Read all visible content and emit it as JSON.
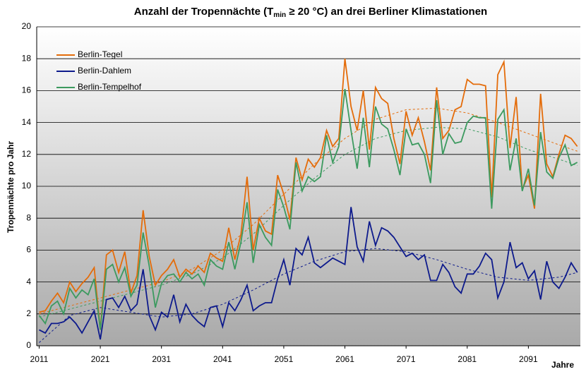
{
  "chart_data": {
    "type": "line",
    "title": [
      "Anzahl der Tropennächte (T",
      "min",
      " ≥ 20 °C) an drei Berliner Klimastationen"
    ],
    "y_label": "Tropennächte pro Jahr",
    "x_label": "Jahre",
    "x": [
      2011,
      2012,
      2013,
      2014,
      2015,
      2016,
      2017,
      2018,
      2019,
      2020,
      2021,
      2022,
      2023,
      2024,
      2025,
      2026,
      2027,
      2028,
      2029,
      2030,
      2031,
      2032,
      2033,
      2034,
      2035,
      2036,
      2037,
      2038,
      2039,
      2040,
      2041,
      2042,
      2043,
      2044,
      2045,
      2046,
      2047,
      2048,
      2049,
      2050,
      2051,
      2052,
      2053,
      2054,
      2055,
      2056,
      2057,
      2058,
      2059,
      2060,
      2061,
      2062,
      2063,
      2064,
      2065,
      2066,
      2067,
      2068,
      2069,
      2070,
      2071,
      2072,
      2073,
      2074,
      2075,
      2076,
      2077,
      2078,
      2079,
      2080,
      2081,
      2082,
      2083,
      2084,
      2085,
      2086,
      2087,
      2088,
      2089,
      2090,
      2091,
      2092,
      2093,
      2094,
      2095,
      2096,
      2097,
      2098,
      2099
    ],
    "xlim": [
      2010.6,
      2099.5
    ],
    "xticks": [
      2011,
      2021,
      2031,
      2041,
      2051,
      2061,
      2071,
      2081,
      2091
    ],
    "ylim": [
      0,
      20
    ],
    "yticks": [
      0,
      2,
      4,
      6,
      8,
      10,
      12,
      14,
      16,
      18,
      20
    ],
    "grid": true,
    "legend": "upper-left",
    "series": [
      {
        "name": "Berlin-Tegel",
        "color": "#e46c0a",
        "values": [
          2.1,
          2.2,
          2.8,
          3.3,
          2.7,
          4.0,
          3.4,
          3.9,
          4.3,
          4.9,
          1.0,
          5.7,
          6.0,
          4.6,
          5.9,
          3.3,
          4.4,
          8.5,
          5.6,
          3.8,
          4.4,
          4.8,
          5.4,
          4.3,
          4.8,
          4.5,
          5.0,
          4.6,
          5.8,
          5.5,
          5.3,
          7.4,
          5.4,
          7.0,
          10.6,
          6.0,
          8.0,
          7.2,
          7.0,
          10.7,
          9.5,
          7.9,
          11.8,
          10.4,
          11.7,
          11.2,
          11.8,
          13.5,
          12.5,
          13.0,
          18.0,
          15.0,
          13.5,
          16.0,
          12.3,
          16.2,
          15.5,
          15.2,
          13.0,
          11.4,
          14.7,
          13.2,
          14.3,
          12.8,
          11.0,
          16.2,
          13.0,
          13.5,
          14.8,
          15.0,
          16.7,
          16.4,
          16.4,
          16.3,
          9.3,
          17.0,
          17.8,
          12.4,
          15.6,
          9.8,
          10.7,
          8.6,
          15.8,
          11.4,
          10.6,
          12.0,
          13.2,
          13.0,
          12.5
        ]
      },
      {
        "name": "Berlin-Dahlem",
        "color": "#0d1a8c",
        "values": [
          1.0,
          0.8,
          1.4,
          1.4,
          1.5,
          1.8,
          1.4,
          0.8,
          1.5,
          2.2,
          0.4,
          2.9,
          3.0,
          2.4,
          3.1,
          2.2,
          2.6,
          4.8,
          1.9,
          1.0,
          2.1,
          1.8,
          3.2,
          1.5,
          2.6,
          1.9,
          1.5,
          1.2,
          2.4,
          2.5,
          1.2,
          2.7,
          2.2,
          2.9,
          3.8,
          2.2,
          2.5,
          2.7,
          2.7,
          4.2,
          5.4,
          3.8,
          6.1,
          5.7,
          6.8,
          5.2,
          4.9,
          5.2,
          5.5,
          5.3,
          5.1,
          8.7,
          6.2,
          5.3,
          7.8,
          6.3,
          7.4,
          7.2,
          6.8,
          6.2,
          5.6,
          5.8,
          5.4,
          5.7,
          4.1,
          4.1,
          5.1,
          4.6,
          3.7,
          3.3,
          4.5,
          4.5,
          5.0,
          5.8,
          5.4,
          3.0,
          4.0,
          6.5,
          4.9,
          5.2,
          4.2,
          4.7,
          2.9,
          5.3,
          4.0,
          3.6,
          4.3,
          5.2,
          4.6
        ]
      },
      {
        "name": "Berlin-Tempelhof",
        "color": "#3c9a5f",
        "values": [
          1.9,
          1.4,
          2.5,
          2.8,
          2.0,
          3.6,
          3.0,
          3.5,
          3.2,
          4.2,
          1.0,
          4.8,
          5.1,
          4.0,
          4.9,
          3.1,
          3.8,
          7.1,
          5.0,
          2.4,
          3.9,
          4.4,
          4.5,
          4.0,
          4.6,
          4.2,
          4.5,
          3.8,
          5.4,
          5.0,
          4.8,
          6.5,
          4.8,
          6.5,
          9.0,
          5.2,
          7.6,
          6.8,
          6.3,
          9.8,
          8.7,
          7.3,
          11.5,
          9.7,
          10.6,
          10.3,
          10.6,
          13.2,
          11.5,
          12.5,
          16.1,
          13.5,
          11.1,
          14.3,
          11.2,
          15.0,
          13.9,
          13.6,
          12.3,
          10.7,
          13.6,
          12.6,
          12.7,
          12.0,
          10.2,
          15.4,
          12.0,
          13.3,
          12.7,
          12.8,
          14.0,
          14.4,
          14.3,
          14.3,
          8.6,
          14.2,
          14.8,
          11.0,
          13.0,
          9.7,
          11.1,
          8.8,
          13.4,
          10.9,
          10.5,
          11.8,
          12.6,
          11.3,
          11.5
        ]
      }
    ],
    "trendlines": [
      {
        "color": "#e46c0a",
        "x": [
          2011,
          2016,
          2021,
          2026,
          2031,
          2036,
          2041,
          2046,
          2051,
          2056,
          2061,
          2066,
          2071,
          2076,
          2081,
          2086,
          2091,
          2096,
          2099
        ],
        "values": [
          2.0,
          2.5,
          3.0,
          3.5,
          4.0,
          4.8,
          6.0,
          7.6,
          9.5,
          11.4,
          13.0,
          14.2,
          14.8,
          14.9,
          14.6,
          14.0,
          13.3,
          12.6,
          12.2
        ]
      },
      {
        "color": "#0d1a8c",
        "x": [
          2011,
          2016,
          2021,
          2026,
          2031,
          2036,
          2041,
          2046,
          2051,
          2056,
          2061,
          2066,
          2071,
          2076,
          2081,
          2086,
          2091,
          2096,
          2099
        ],
        "values": [
          0.2,
          1.9,
          2.4,
          2.1,
          1.8,
          2.0,
          2.6,
          3.5,
          4.5,
          5.3,
          5.9,
          6.1,
          5.9,
          5.4,
          4.8,
          4.3,
          4.1,
          4.3,
          4.6
        ]
      },
      {
        "color": "#3c9a5f",
        "x": [
          2011,
          2016,
          2021,
          2026,
          2031,
          2036,
          2041,
          2046,
          2051,
          2056,
          2061,
          2066,
          2071,
          2076,
          2081,
          2086,
          2091,
          2096,
          2099
        ],
        "values": [
          1.8,
          2.3,
          2.8,
          3.3,
          3.8,
          4.5,
          5.5,
          7.0,
          8.8,
          10.5,
          12.0,
          13.0,
          13.5,
          13.7,
          13.6,
          13.1,
          12.3,
          11.7,
          11.3
        ]
      }
    ]
  }
}
